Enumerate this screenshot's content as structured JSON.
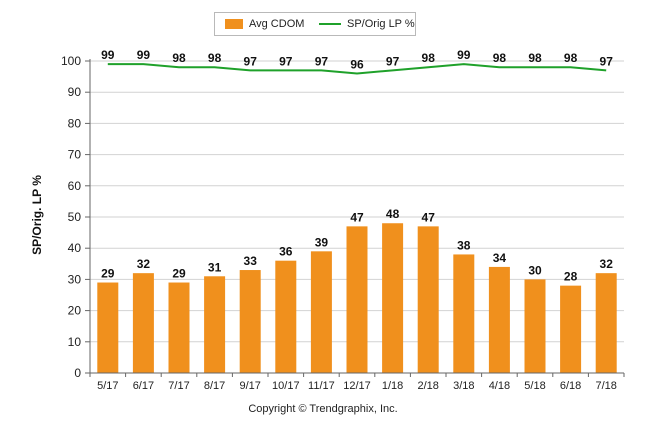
{
  "chart_data": {
    "type": "bar",
    "categories": [
      "5/17",
      "6/17",
      "7/17",
      "8/17",
      "9/17",
      "10/17",
      "11/17",
      "12/17",
      "1/18",
      "2/18",
      "3/18",
      "4/18",
      "5/18",
      "6/18",
      "7/18"
    ],
    "series": [
      {
        "name": "Avg CDOM",
        "type": "bar",
        "color": "#f0901d",
        "values": [
          29,
          32,
          29,
          31,
          33,
          36,
          39,
          47,
          48,
          47,
          38,
          34,
          30,
          28,
          32
        ]
      },
      {
        "name": "SP/Orig LP %",
        "type": "line",
        "color": "#1fa12a",
        "values": [
          99,
          99,
          98,
          98,
          97,
          97,
          97,
          96,
          97,
          98,
          99,
          98,
          98,
          98,
          97
        ]
      }
    ],
    "title": "",
    "xlabel": "",
    "ylabel": "SP/Orig. LP %",
    "ylim": [
      0,
      100
    ],
    "yticks": [
      0,
      10,
      20,
      30,
      40,
      50,
      60,
      70,
      80,
      90,
      100
    ],
    "grid": true,
    "legend_position": "top-center"
  },
  "legend": {
    "bar_label": "Avg CDOM",
    "line_label": "SP/Orig LP %"
  },
  "footer": {
    "copyright": "Copyright © Trendgraphix, Inc."
  }
}
